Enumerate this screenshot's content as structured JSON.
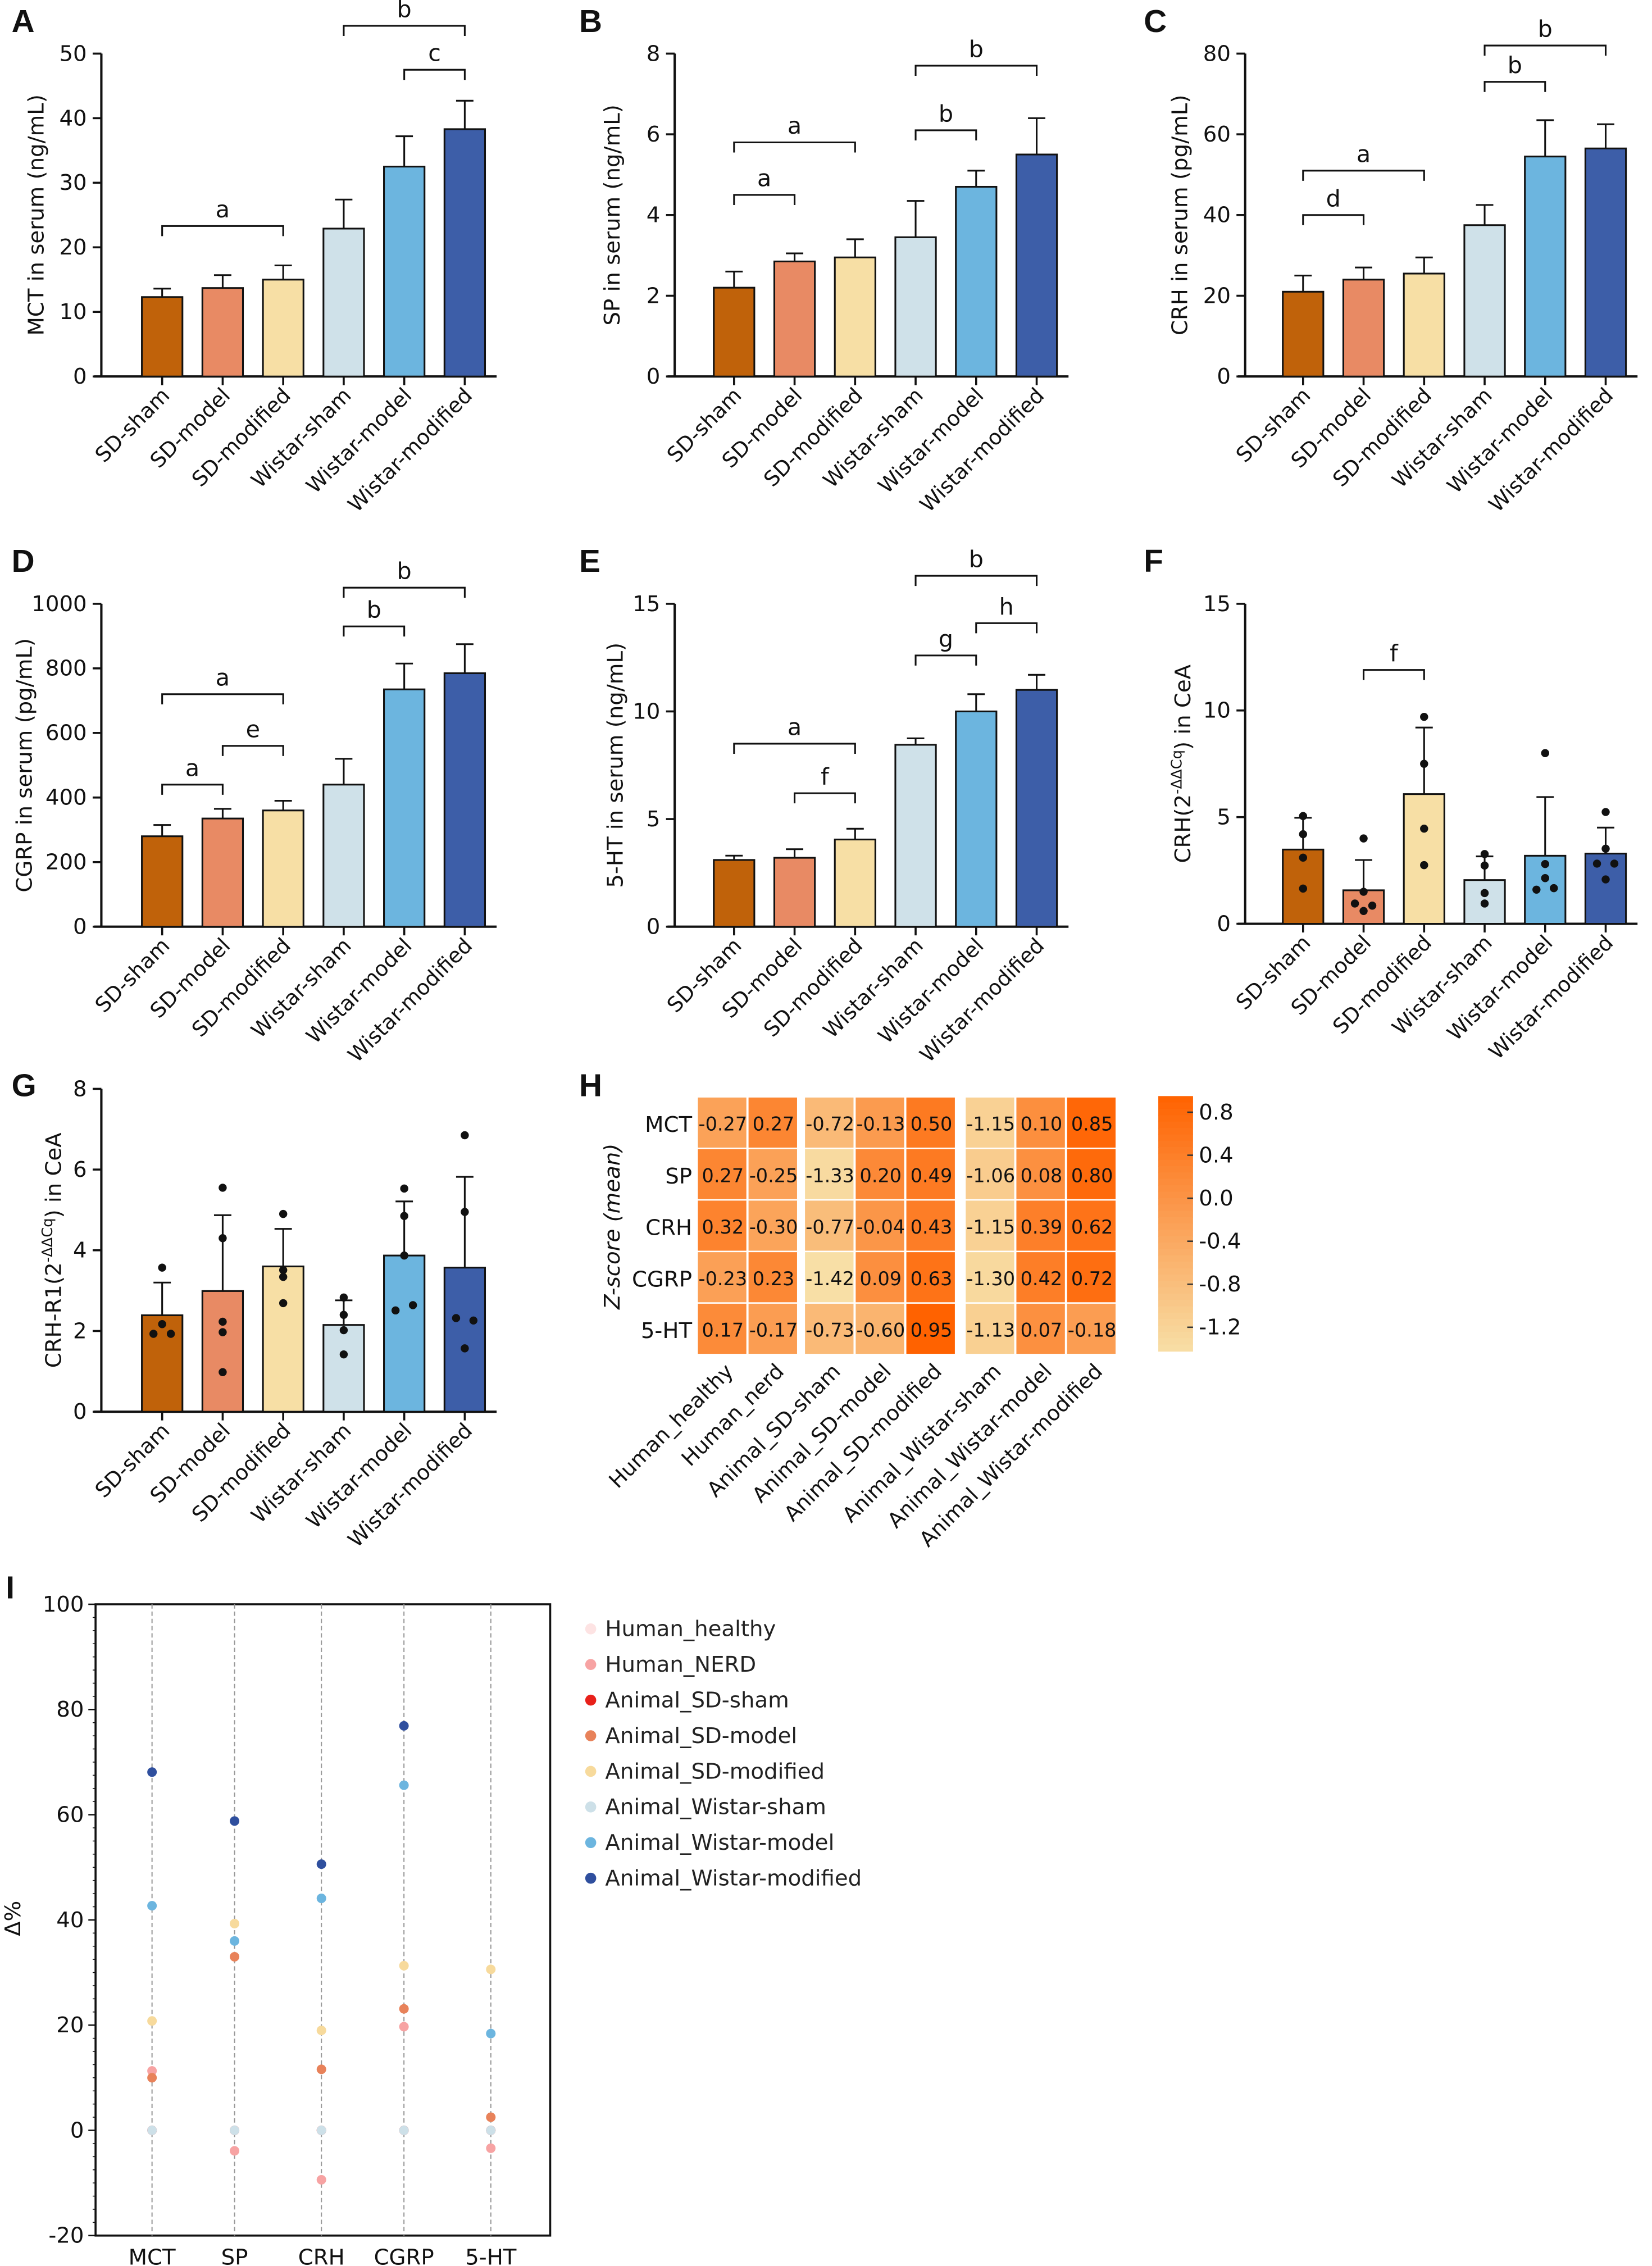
{
  "colors": {
    "groups": [
      "#c0620a",
      "#e88a64",
      "#f7dfa5",
      "#cfe1e9",
      "#6cb5df",
      "#3d5ea8"
    ],
    "series_I": [
      "#fde3e3",
      "#f7a3a3",
      "#e8201a",
      "#e8825a",
      "#f7da9c",
      "#cde0e8",
      "#6cb5df",
      "#2f4f9e"
    ],
    "heatmap_low": "#f8dfa6",
    "heatmap_mid": "#fb9a4e",
    "heatmap_high": "#ff6200"
  },
  "chart_data": [
    {
      "panel": "A",
      "type": "bar",
      "categories": [
        "SD-sham",
        "SD-model",
        "SD-modified",
        "Wistar-sham",
        "Wistar-model",
        "Wistar-modified"
      ],
      "ylabel": "MCT in serum (ng/mL)",
      "ylim": [
        0,
        50
      ],
      "yticks": [
        "0",
        "10",
        "20",
        "30",
        "40",
        "50"
      ],
      "values": [
        12.3,
        13.7,
        15.0,
        22.9,
        32.5,
        38.3
      ],
      "errors": [
        1.3,
        2.0,
        2.2,
        4.5,
        4.7,
        4.4
      ],
      "brackets": [
        {
          "from": 0,
          "to": 2,
          "label": "a",
          "y": 23.3
        },
        {
          "from": 4,
          "to": 5,
          "label": "c",
          "y": 47.5
        },
        {
          "from": 3,
          "to": 5,
          "label": "b",
          "y": 54.3
        }
      ]
    },
    {
      "panel": "B",
      "type": "bar",
      "categories": [
        "SD-sham",
        "SD-model",
        "SD-modified",
        "Wistar-sham",
        "Wistar-model",
        "Wistar-modified"
      ],
      "ylabel": "SP in serum (ng/mL)",
      "ylim": [
        0,
        8
      ],
      "yticks": [
        "0",
        "2",
        "4",
        "6",
        "8"
      ],
      "values": [
        2.2,
        2.85,
        2.95,
        3.45,
        4.7,
        5.5
      ],
      "errors": [
        0.4,
        0.2,
        0.45,
        0.9,
        0.4,
        0.9
      ],
      "brackets": [
        {
          "from": 0,
          "to": 1,
          "label": "a",
          "y": 4.5
        },
        {
          "from": 0,
          "to": 2,
          "label": "a",
          "y": 5.8
        },
        {
          "from": 3,
          "to": 4,
          "label": "b",
          "y": 6.1
        },
        {
          "from": 3,
          "to": 5,
          "label": "b",
          "y": 7.7
        }
      ]
    },
    {
      "panel": "C",
      "type": "bar",
      "categories": [
        "SD-sham",
        "SD-model",
        "SD-modified",
        "Wistar-sham",
        "Wistar-model",
        "Wistar-modified"
      ],
      "ylabel": "CRH in serum (pg/mL)",
      "ylim": [
        0,
        80
      ],
      "yticks": [
        "0",
        "20",
        "40",
        "60",
        "80"
      ],
      "values": [
        21,
        24,
        25.5,
        37.5,
        54.5,
        56.5
      ],
      "errors": [
        4,
        3,
        4,
        5,
        9,
        6
      ],
      "brackets": [
        {
          "from": 0,
          "to": 1,
          "label": "d",
          "y": 40
        },
        {
          "from": 0,
          "to": 2,
          "label": "a",
          "y": 51
        },
        {
          "from": 3,
          "to": 4,
          "label": "b",
          "y": 73
        },
        {
          "from": 3,
          "to": 5,
          "label": "b",
          "y": 82
        }
      ]
    },
    {
      "panel": "D",
      "type": "bar",
      "categories": [
        "SD-sham",
        "SD-model",
        "SD-modified",
        "Wistar-sham",
        "Wistar-model",
        "Wistar-modified"
      ],
      "ylabel": "CGRP in serum (pg/mL)",
      "ylim": [
        0,
        1000
      ],
      "yticks": [
        "0",
        "200",
        "400",
        "600",
        "800",
        "1000"
      ],
      "values": [
        280,
        335,
        360,
        440,
        735,
        785
      ],
      "errors": [
        35,
        30,
        30,
        80,
        80,
        90
      ],
      "brackets": [
        {
          "from": 0,
          "to": 1,
          "label": "a",
          "y": 440
        },
        {
          "from": 1,
          "to": 2,
          "label": "e",
          "y": 560
        },
        {
          "from": 0,
          "to": 2,
          "label": "a",
          "y": 720
        },
        {
          "from": 3,
          "to": 4,
          "label": "b",
          "y": 930
        },
        {
          "from": 3,
          "to": 5,
          "label": "b",
          "y": 1050
        }
      ]
    },
    {
      "panel": "E",
      "type": "bar",
      "categories": [
        "SD-sham",
        "SD-model",
        "SD-modified",
        "Wistar-sham",
        "Wistar-model",
        "Wistar-modified"
      ],
      "ylabel": "5-HT in serum (ng/mL)",
      "ylim": [
        0,
        15
      ],
      "yticks": [
        "0",
        "5",
        "10",
        "15"
      ],
      "values": [
        3.1,
        3.2,
        4.05,
        8.45,
        10.0,
        11.0
      ],
      "errors": [
        0.2,
        0.4,
        0.5,
        0.3,
        0.8,
        0.7
      ],
      "brackets": [
        {
          "from": 1,
          "to": 2,
          "label": "f",
          "y": 6.2
        },
        {
          "from": 0,
          "to": 2,
          "label": "a",
          "y": 8.5
        },
        {
          "from": 3,
          "to": 4,
          "label": "g",
          "y": 12.6
        },
        {
          "from": 4,
          "to": 5,
          "label": "h",
          "y": 14.1
        },
        {
          "from": 3,
          "to": 5,
          "label": "b",
          "y": 16.3
        }
      ]
    },
    {
      "panel": "F",
      "type": "bar",
      "categories": [
        "SD-sham",
        "SD-model",
        "SD-modified",
        "Wistar-sham",
        "Wistar-model",
        "Wistar-modified"
      ],
      "ylabel_parts": [
        "CRH(2",
        "-ΔΔCq",
        ") in CeA"
      ],
      "ylim": [
        0,
        15
      ],
      "yticks": [
        "0",
        "5",
        "10",
        "15"
      ],
      "values": [
        3.48,
        1.57,
        6.08,
        2.05,
        3.19,
        3.29
      ],
      "errors": [
        1.49,
        1.42,
        3.12,
        1.11,
        2.75,
        1.22
      ],
      "points": [
        [
          5.05,
          4.2,
          3.1,
          1.65
        ],
        [
          4.0,
          1.5,
          0.95,
          0.85,
          0.6
        ],
        [
          9.7,
          7.5,
          4.46,
          2.75
        ],
        [
          3.27,
          2.73,
          1.44,
          0.95
        ],
        [
          8.0,
          2.8,
          2.14,
          1.67,
          1.6
        ],
        [
          5.24,
          3.52,
          2.82,
          2.82,
          2.08
        ]
      ],
      "brackets": [
        {
          "from": 1,
          "to": 2,
          "label": "f",
          "y": 11.9
        }
      ]
    },
    {
      "panel": "G",
      "type": "bar",
      "categories": [
        "SD-sham",
        "SD-model",
        "SD-modified",
        "Wistar-sham",
        "Wistar-model",
        "Wistar-modified"
      ],
      "ylabel_parts": [
        "CRH-R1(2",
        "-ΔΔCq",
        ") in CeA"
      ],
      "ylim": [
        0,
        8
      ],
      "yticks": [
        "0",
        "2",
        "4",
        "6",
        "8"
      ],
      "values": [
        2.39,
        2.99,
        3.6,
        2.15,
        3.87,
        3.57
      ],
      "errors": [
        0.81,
        1.88,
        0.93,
        0.61,
        1.34,
        2.25
      ],
      "points": [
        [
          3.57,
          2.17,
          1.93,
          1.93
        ],
        [
          5.55,
          4.3,
          2.23,
          1.97,
          0.98
        ],
        [
          4.9,
          3.51,
          3.34,
          2.69
        ],
        [
          2.83,
          2.4,
          2.02,
          1.42
        ],
        [
          5.53,
          4.85,
          3.87,
          2.64,
          2.51
        ],
        [
          6.85,
          4.95,
          2.32,
          2.26,
          1.57
        ]
      ],
      "brackets": []
    },
    {
      "panel": "H",
      "type": "heatmap",
      "ylabel": "Z-score (mean)",
      "rows": [
        "MCT",
        "SP",
        "CRH",
        "CGRP",
        "5-HT"
      ],
      "columns": [
        "Human_healthy",
        "Human_nerd",
        "Animal_SD-sham",
        "Animal_SD-model",
        "Animal_SD-modified",
        "Animal_Wistar-sham",
        "Animal_Wistar-model",
        "Animal_Wistar-modified"
      ],
      "column_groups": [
        [
          0,
          1
        ],
        [
          2,
          3,
          4
        ],
        [
          5,
          6,
          7
        ]
      ],
      "values": [
        [
          -0.27,
          0.27,
          -0.72,
          -0.13,
          0.5,
          -1.15,
          0.1,
          0.85
        ],
        [
          0.27,
          -0.25,
          -1.33,
          0.2,
          0.49,
          -1.06,
          0.08,
          0.8
        ],
        [
          0.32,
          -0.3,
          -0.77,
          -0.04,
          0.43,
          -1.15,
          0.39,
          0.62
        ],
        [
          -0.23,
          0.23,
          -1.42,
          0.09,
          0.63,
          -1.3,
          0.42,
          0.72
        ],
        [
          0.17,
          -0.17,
          -0.73,
          -0.6,
          0.95,
          -1.13,
          0.07,
          -0.18
        ]
      ],
      "labels": [
        [
          "-0.27",
          "0.27",
          "-0.72",
          "-0.13",
          "0.50",
          "-1.15",
          "0.10",
          "0.85"
        ],
        [
          "0.27",
          "-0.25",
          "-1.33",
          "0.20",
          "0.49",
          "-1.06",
          "0.08",
          "0.80"
        ],
        [
          "0.32",
          "-0.30",
          "-0.77",
          "-0.04",
          "0.43",
          "-1.15",
          "0.39",
          "0.62"
        ],
        [
          "-0.23",
          "0.23",
          "-1.42",
          "0.09",
          "0.63",
          "-1.30",
          "0.42",
          "0.72"
        ],
        [
          "0.17",
          "-0.17",
          "-0.73",
          "-0.60",
          "0.95",
          "-1.13",
          "0.07",
          "-0.18"
        ]
      ],
      "colorbar_range": [
        -1.42,
        0.95
      ],
      "colorbar_ticks": [
        "0.8",
        "0.4",
        "0.0",
        "-0.4",
        "-0.8",
        "-1.2"
      ]
    },
    {
      "panel": "I",
      "type": "scatter",
      "ylabel": "Δ%",
      "categories": [
        "MCT",
        "SP",
        "CRH",
        "CGRP",
        "5-HT"
      ],
      "ylim": [
        -20,
        100
      ],
      "yticks": [
        "-20",
        "0",
        "20",
        "40",
        "60",
        "80",
        "100"
      ],
      "grid": "vertical dashed lines at categories",
      "legend_position": "right",
      "series": [
        {
          "name": "Human_healthy",
          "values": [
            0,
            0,
            0,
            0,
            0
          ]
        },
        {
          "name": "Human_NERD",
          "values": [
            11.3,
            -3.9,
            -9.4,
            19.7,
            -3.4
          ]
        },
        {
          "name": "Animal_SD-sham",
          "values": [
            0,
            0,
            0,
            0,
            0
          ]
        },
        {
          "name": "Animal_SD-model",
          "values": [
            10.0,
            33.0,
            11.6,
            23.1,
            2.5
          ]
        },
        {
          "name": "Animal_SD-modified",
          "values": [
            20.8,
            39.3,
            19.0,
            31.3,
            30.6
          ]
        },
        {
          "name": "Animal_Wistar-sham",
          "values": [
            0,
            0,
            0,
            0,
            0
          ]
        },
        {
          "name": "Animal_Wistar-model",
          "values": [
            42.7,
            36.0,
            44.1,
            65.6,
            18.4
          ]
        },
        {
          "name": "Animal_Wistar-modified",
          "values": [
            68.1,
            58.8,
            50.6,
            76.9,
            null
          ]
        }
      ]
    }
  ]
}
